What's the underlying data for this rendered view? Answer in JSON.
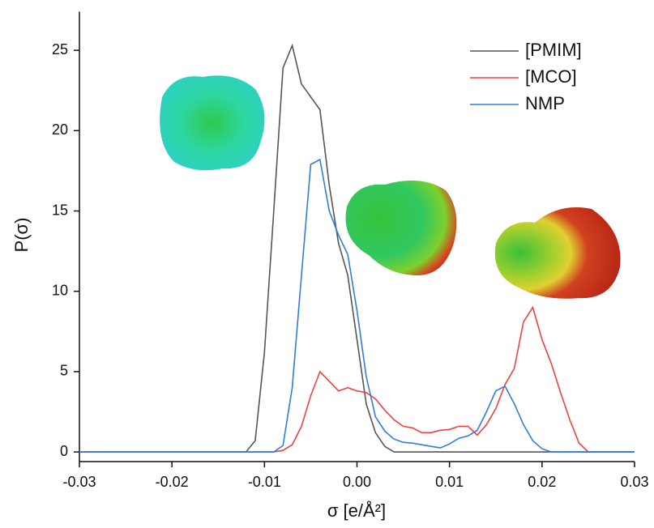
{
  "chart_data": {
    "type": "line",
    "xlabel": "σ [e/Å²]",
    "ylabel": "P(σ)",
    "x": [
      -0.03,
      -0.012,
      -0.011,
      -0.01,
      -0.009,
      -0.008,
      -0.007,
      -0.006,
      -0.005,
      -0.004,
      -0.003,
      -0.002,
      -0.001,
      0,
      0.001,
      0.002,
      0.003,
      0.004,
      0.005,
      0.006,
      0.007,
      0.008,
      0.009,
      0.01,
      0.011,
      0.012,
      0.013,
      0.014,
      0.015,
      0.016,
      0.017,
      0.018,
      0.019,
      0.02,
      0.021,
      0.022,
      0.023,
      0.024,
      0.025,
      0.03
    ],
    "series": [
      {
        "name": "[PMIM]",
        "color": "#555555",
        "values": [
          0,
          0,
          0.7,
          6.2,
          15,
          23.9,
          25.3,
          22.9,
          22.1,
          21.3,
          16.6,
          13,
          11,
          7,
          3,
          1.2,
          0.35,
          0,
          0,
          0,
          0,
          0,
          0,
          0,
          0,
          0,
          0,
          0,
          0,
          0,
          0,
          0,
          0,
          0,
          0,
          0,
          0,
          0,
          0,
          0
        ]
      },
      {
        "name": "[MCO]",
        "color": "#f04040",
        "values": [
          0,
          0,
          0,
          0,
          0,
          0.1,
          0.45,
          1.6,
          3.5,
          5.0,
          4.4,
          3.8,
          4.0,
          3.8,
          3.7,
          3.3,
          2.6,
          2.0,
          1.6,
          1.5,
          1.2,
          1.2,
          1.35,
          1.4,
          1.6,
          1.6,
          1.05,
          1.7,
          2.7,
          4.2,
          5.2,
          8.1,
          9.0,
          7.0,
          5.5,
          3.7,
          2.0,
          0.55,
          0,
          0
        ]
      },
      {
        "name": "NMP",
        "color": "#2f7de1",
        "values": [
          0,
          0,
          0,
          0,
          0,
          0.4,
          4,
          11,
          17.9,
          18.2,
          15,
          13.5,
          12.3,
          8.8,
          4.7,
          2.2,
          1.3,
          0.8,
          0.6,
          0.55,
          0.45,
          0.35,
          0.25,
          0.5,
          0.85,
          1.0,
          1.35,
          2.5,
          3.8,
          4.1,
          3,
          1.7,
          0.7,
          0.2,
          0,
          0,
          0,
          0,
          0,
          0
        ]
      }
    ],
    "xlim": [
      -0.03,
      0.03
    ],
    "xticks": [
      -0.03,
      -0.02,
      -0.01,
      {
        "value": 0,
        "label": "0.00"
      },
      0.01,
      0.02,
      0.03
    ],
    "ylim": [
      -0.6,
      27.4
    ],
    "yticks": [
      0,
      5,
      10,
      15,
      20,
      25
    ],
    "legend": "upper right"
  }
}
